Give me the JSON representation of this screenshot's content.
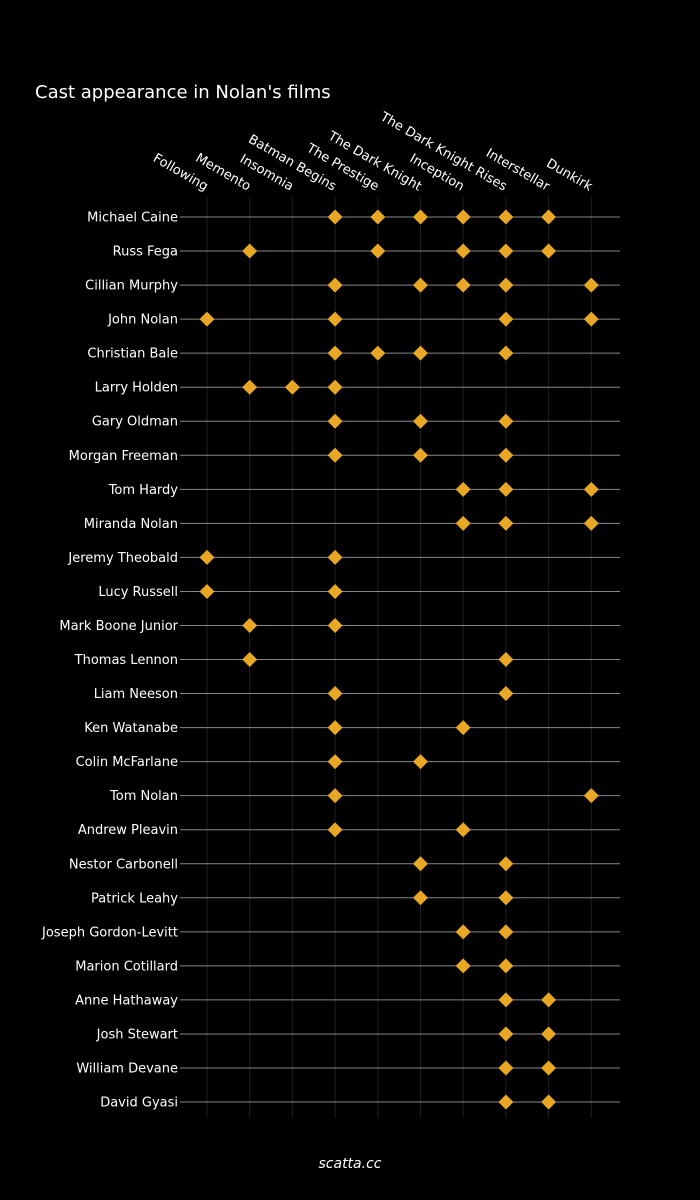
{
  "colors": {
    "background": "#000000",
    "text": "#ffffff",
    "row_line": "#888888",
    "column_grid": "#1e1e1e",
    "marker": "#e8a825"
  },
  "footer": "scatta.cc",
  "chart_data": {
    "type": "scatter",
    "marker": "diamond",
    "title": "Cast appearance in Nolan's films",
    "films": [
      "Following",
      "Memento",
      "Insomnia",
      "Batman Begins",
      "The Prestige",
      "The Dark Knight",
      "Inception",
      "The Dark Knight Rises",
      "Interstellar",
      "Dunkirk"
    ],
    "cast": [
      {
        "name": "Michael Caine",
        "films": [
          "Batman Begins",
          "The Prestige",
          "The Dark Knight",
          "Inception",
          "The Dark Knight Rises",
          "Interstellar"
        ]
      },
      {
        "name": "Russ Fega",
        "films": [
          "Memento",
          "The Prestige",
          "Inception",
          "The Dark Knight Rises",
          "Interstellar"
        ]
      },
      {
        "name": "Cillian Murphy",
        "films": [
          "Batman Begins",
          "The Dark Knight",
          "Inception",
          "The Dark Knight Rises",
          "Dunkirk"
        ]
      },
      {
        "name": "John Nolan",
        "films": [
          "Following",
          "Batman Begins",
          "The Dark Knight Rises",
          "Dunkirk"
        ]
      },
      {
        "name": "Christian Bale",
        "films": [
          "Batman Begins",
          "The Prestige",
          "The Dark Knight",
          "The Dark Knight Rises"
        ]
      },
      {
        "name": "Larry Holden",
        "films": [
          "Memento",
          "Insomnia",
          "Batman Begins"
        ]
      },
      {
        "name": "Gary Oldman",
        "films": [
          "Batman Begins",
          "The Dark Knight",
          "The Dark Knight Rises"
        ]
      },
      {
        "name": "Morgan Freeman",
        "films": [
          "Batman Begins",
          "The Dark Knight",
          "The Dark Knight Rises"
        ]
      },
      {
        "name": "Tom Hardy",
        "films": [
          "Inception",
          "The Dark Knight Rises",
          "Dunkirk"
        ]
      },
      {
        "name": "Miranda Nolan",
        "films": [
          "Inception",
          "The Dark Knight Rises",
          "Dunkirk"
        ]
      },
      {
        "name": "Jeremy Theobald",
        "films": [
          "Following",
          "Batman Begins"
        ]
      },
      {
        "name": "Lucy Russell",
        "films": [
          "Following",
          "Batman Begins"
        ]
      },
      {
        "name": "Mark Boone Junior",
        "films": [
          "Memento",
          "Batman Begins"
        ]
      },
      {
        "name": "Thomas Lennon",
        "films": [
          "Memento",
          "The Dark Knight Rises"
        ]
      },
      {
        "name": "Liam Neeson",
        "films": [
          "Batman Begins",
          "The Dark Knight Rises"
        ]
      },
      {
        "name": "Ken Watanabe",
        "films": [
          "Batman Begins",
          "Inception"
        ]
      },
      {
        "name": "Colin McFarlane",
        "films": [
          "Batman Begins",
          "The Dark Knight"
        ]
      },
      {
        "name": "Tom Nolan",
        "films": [
          "Batman Begins",
          "Dunkirk"
        ]
      },
      {
        "name": "Andrew Pleavin",
        "films": [
          "Batman Begins",
          "Inception"
        ]
      },
      {
        "name": "Nestor Carbonell",
        "films": [
          "The Dark Knight",
          "The Dark Knight Rises"
        ]
      },
      {
        "name": "Patrick Leahy",
        "films": [
          "The Dark Knight",
          "The Dark Knight Rises"
        ]
      },
      {
        "name": "Joseph Gordon-Levitt",
        "films": [
          "Inception",
          "The Dark Knight Rises"
        ]
      },
      {
        "name": "Marion Cotillard",
        "films": [
          "Inception",
          "The Dark Knight Rises"
        ]
      },
      {
        "name": "Anne Hathaway",
        "films": [
          "The Dark Knight Rises",
          "Interstellar"
        ]
      },
      {
        "name": "Josh Stewart",
        "films": [
          "The Dark Knight Rises",
          "Interstellar"
        ]
      },
      {
        "name": "William Devane",
        "films": [
          "The Dark Knight Rises",
          "Interstellar"
        ]
      },
      {
        "name": "David Gyasi",
        "films": [
          "The Dark Knight Rises",
          "Interstellar"
        ]
      }
    ]
  }
}
